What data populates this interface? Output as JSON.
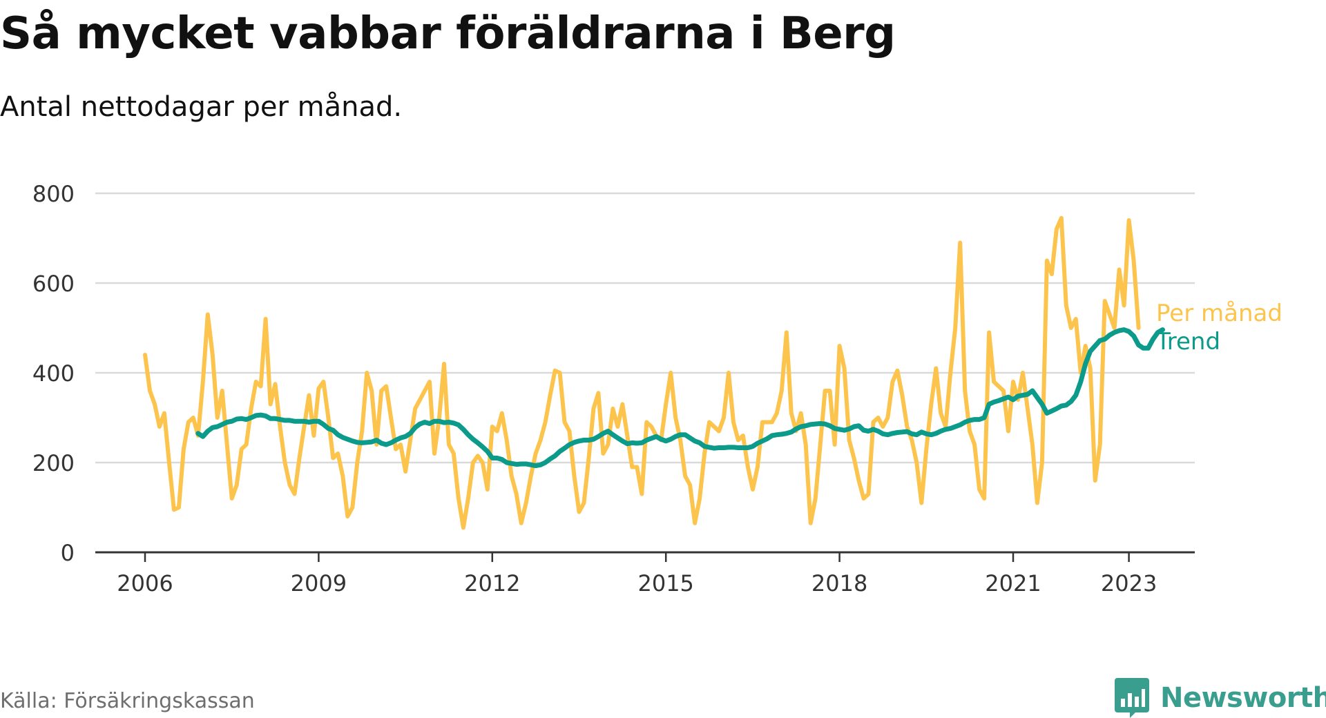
{
  "page": {
    "title": "Så mycket vabbar föräldrarna i Berg",
    "subtitle": "Antal nettodagar per månad.",
    "source": "Källa: Försäkringskassan",
    "brand": "Newsworthy"
  },
  "colors": {
    "monthly": "#fcc44c",
    "trend": "#0c9a8a",
    "grid": "#d9d9d9",
    "axis": "#333333",
    "brand": "#3a9e8f"
  },
  "chart_data": {
    "type": "line",
    "title": "Så mycket vabbar föräldrarna i Berg",
    "subtitle": "Antal nettodagar per månad.",
    "xlabel": "",
    "ylabel": "",
    "x_start": 2006.0,
    "x_step_years": 0.0833333,
    "xlim": [
      2006.0,
      2023.5
    ],
    "ylim": [
      0,
      800
    ],
    "yticks": [
      0,
      200,
      400,
      600,
      800
    ],
    "ytick_labels": [
      "0",
      "200",
      "400",
      "600",
      "800"
    ],
    "xticks": [
      2006,
      2009,
      2012,
      2015,
      2018,
      2021,
      2023
    ],
    "xtick_labels": [
      "2006",
      "2009",
      "2012",
      "2015",
      "2018",
      "2021",
      "2023"
    ],
    "grid": true,
    "legend": "inline-right",
    "series": [
      {
        "name": "Per månad",
        "start": 2006.0,
        "values": [
          440,
          360,
          330,
          280,
          310,
          200,
          95,
          100,
          230,
          290,
          300,
          260,
          380,
          530,
          440,
          300,
          360,
          240,
          120,
          150,
          230,
          240,
          320,
          380,
          370,
          520,
          330,
          375,
          280,
          200,
          150,
          130,
          210,
          280,
          350,
          260,
          365,
          380,
          300,
          210,
          220,
          170,
          80,
          100,
          200,
          270,
          400,
          360,
          240,
          360,
          370,
          300,
          230,
          240,
          180,
          250,
          320,
          340,
          360,
          380,
          220,
          300,
          420,
          240,
          220,
          120,
          55,
          120,
          200,
          215,
          200,
          140,
          280,
          270,
          310,
          250,
          170,
          130,
          65,
          110,
          170,
          220,
          250,
          290,
          350,
          405,
          400,
          290,
          270,
          170,
          90,
          110,
          210,
          320,
          355,
          220,
          240,
          320,
          280,
          330,
          260,
          190,
          190,
          130,
          290,
          280,
          260,
          250,
          330,
          400,
          300,
          250,
          170,
          150,
          65,
          120,
          220,
          290,
          280,
          270,
          300,
          400,
          290,
          250,
          260,
          190,
          140,
          190,
          290,
          290,
          290,
          310,
          360,
          490,
          310,
          270,
          310,
          240,
          65,
          120,
          240,
          360,
          360,
          240,
          460,
          410,
          250,
          210,
          160,
          120,
          130,
          290,
          300,
          280,
          300,
          380,
          405,
          350,
          280,
          250,
          200,
          110,
          230,
          330,
          410,
          310,
          280,
          400,
          500,
          690,
          360,
          270,
          240,
          140,
          120,
          490,
          380,
          370,
          360,
          270,
          380,
          340,
          400,
          320,
          240,
          110,
          200,
          650,
          620,
          720,
          745,
          550,
          500,
          520,
          400,
          460,
          410,
          160,
          240,
          560,
          530,
          500,
          630,
          550,
          740,
          650,
          500
        ]
      },
      {
        "name": "Trend",
        "start": 2006.9166667,
        "values": [
          265,
          258,
          270,
          278,
          280,
          285,
          290,
          292,
          297,
          298,
          296,
          300,
          305,
          306,
          304,
          298,
          298,
          296,
          294,
          294,
          292,
          292,
          292,
          290,
          292,
          292,
          285,
          276,
          272,
          262,
          256,
          252,
          248,
          245,
          244,
          245,
          246,
          250,
          243,
          240,
          244,
          250,
          255,
          258,
          265,
          278,
          286,
          290,
          287,
          292,
          292,
          289,
          290,
          288,
          284,
          274,
          262,
          252,
          244,
          235,
          225,
          210,
          210,
          207,
          200,
          198,
          196,
          197,
          197,
          195,
          193,
          195,
          200,
          208,
          215,
          225,
          232,
          240,
          245,
          248,
          250,
          250,
          252,
          258,
          265,
          270,
          262,
          255,
          248,
          242,
          244,
          243,
          244,
          250,
          254,
          258,
          252,
          248,
          252,
          258,
          262,
          262,
          255,
          248,
          244,
          236,
          234,
          232,
          233,
          233,
          234,
          234,
          233,
          233,
          233,
          236,
          243,
          248,
          253,
          260,
          262,
          263,
          265,
          268,
          275,
          280,
          282,
          285,
          286,
          287,
          286,
          282,
          276,
          274,
          272,
          275,
          280,
          282,
          272,
          270,
          274,
          270,
          264,
          262,
          265,
          267,
          268,
          269,
          264,
          262,
          268,
          264,
          262,
          265,
          270,
          274,
          276,
          280,
          284,
          290,
          294,
          296,
          296,
          300,
          330,
          335,
          338,
          342,
          346,
          340,
          348,
          350,
          352,
          360,
          345,
          330,
          310,
          315,
          320,
          326,
          328,
          336,
          350,
          380,
          420,
          448,
          460,
          472,
          475,
          484,
          490,
          494,
          496,
          492,
          482,
          462,
          455,
          455,
          475,
          490,
          496
        ]
      }
    ]
  }
}
